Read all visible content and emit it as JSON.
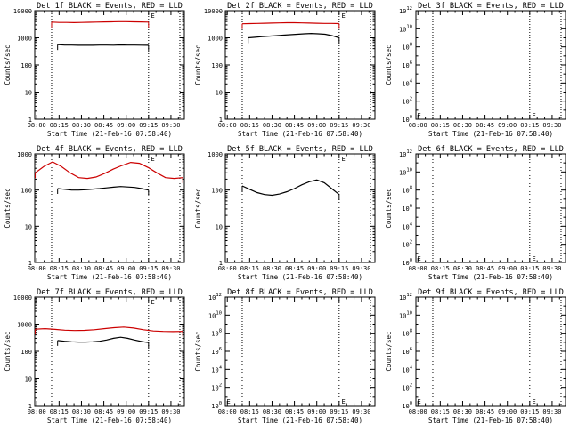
{
  "figure": {
    "background": "#ffffff",
    "foreground": "#000000",
    "series_colors": {
      "BLACK": "#000000",
      "RED": "#cc0000"
    }
  },
  "chart_data": [
    {
      "type": "line",
      "title": "Det 1f BLACK = Events, RED = LLD",
      "xlabel": "Start Time (21-Feb-16 07:58:40)",
      "ylabel": "Counts/sec",
      "y_scale": "log",
      "ylim": [
        1,
        10000
      ],
      "y_ticks": [
        "1",
        "10",
        "100",
        "1000",
        "10000"
      ],
      "x_ticks": [
        "08:00",
        "08:15",
        "08:30",
        "08:45",
        "09:00",
        "09:15",
        "09:30"
      ],
      "xlim": [
        "07:58:40",
        "09:39:00"
      ],
      "vlines": [
        "08:10",
        "09:15",
        "09:36"
      ],
      "marker": {
        "label": "E",
        "x": "09:16",
        "y": 10000
      },
      "series": [
        {
          "color": "#cc0000",
          "x_start": "08:10",
          "x_end": "09:15",
          "values": [
            3800,
            3700,
            3700,
            3650,
            3700,
            3750,
            3800,
            3850,
            3900,
            3950,
            3950,
            3900,
            3850,
            3800
          ]
        },
        {
          "color": "#000000",
          "x_start": "08:14",
          "x_end": "09:15",
          "values": [
            560,
            540,
            540,
            530,
            535,
            530,
            540,
            540,
            535,
            545,
            540,
            540,
            535,
            530
          ]
        }
      ]
    },
    {
      "type": "line",
      "title": "Det 2f BLACK = Events, RED = LLD",
      "xlabel": "Start Time (21-Feb-16 07:58:40)",
      "ylabel": "Counts/sec",
      "y_scale": "log",
      "ylim": [
        1,
        10000
      ],
      "y_ticks": [
        "1",
        "10",
        "100",
        "1000",
        "10000"
      ],
      "x_ticks": [
        "08:00",
        "08:15",
        "08:30",
        "08:45",
        "09:00",
        "09:15",
        "09:30"
      ],
      "xlim": [
        "07:58:40",
        "09:39:00"
      ],
      "vlines": [
        "08:10",
        "09:15",
        "09:36"
      ],
      "marker": {
        "label": "E",
        "x": "09:16",
        "y": 10000
      },
      "series": [
        {
          "color": "#cc0000",
          "x_start": "08:10",
          "x_end": "09:15",
          "values": [
            3300,
            3350,
            3400,
            3450,
            3500,
            3550,
            3600,
            3600,
            3550,
            3500,
            3450,
            3400,
            3400,
            3350
          ]
        },
        {
          "color": "#000000",
          "x_start": "08:14",
          "x_end": "09:15",
          "values": [
            1000,
            1050,
            1100,
            1150,
            1200,
            1250,
            1300,
            1350,
            1400,
            1450,
            1400,
            1350,
            1200,
            1000
          ]
        }
      ]
    },
    {
      "type": "line",
      "title": "Det 3f BLACK = Events, RED = LLD",
      "xlabel": "Start Time (21-Feb-16 07:58:40)",
      "ylabel": "Counts/sec",
      "y_scale": "log",
      "ylim": [
        1,
        1000000000000
      ],
      "y_ticks": [
        "10^0",
        "10^2",
        "10^4",
        "10^6",
        "10^8",
        "10^10",
        "10^12"
      ],
      "y_tick_exponents": [
        0,
        2,
        4,
        6,
        8,
        10,
        12
      ],
      "x_ticks": [
        "08:00",
        "08:15",
        "08:30",
        "08:45",
        "09:00",
        "09:15",
        "09:30"
      ],
      "xlim": [
        "07:58:40",
        "09:39:00"
      ],
      "vlines": [
        "08:10",
        "09:15",
        "09:36"
      ],
      "markers": [
        {
          "label": "E",
          "x": "07:59",
          "y": 1
        },
        {
          "label": "E",
          "x": "09:16",
          "y": 1
        }
      ],
      "series": []
    },
    {
      "type": "line",
      "title": "Det 4f BLACK = Events, RED = LLD",
      "xlabel": "Start Time (21-Feb-16 07:58:40)",
      "ylabel": "Counts/sec",
      "y_scale": "log",
      "ylim": [
        1,
        1000
      ],
      "y_ticks": [
        "1",
        "10",
        "100",
        "1000"
      ],
      "x_ticks": [
        "08:00",
        "08:15",
        "08:30",
        "08:45",
        "09:00",
        "09:15",
        "09:30"
      ],
      "xlim": [
        "07:58:40",
        "09:39:00"
      ],
      "vlines": [
        "08:10",
        "09:15",
        "09:36"
      ],
      "marker": {
        "label": "E",
        "x": "09:16",
        "y": 1000
      },
      "series": [
        {
          "color": "#cc0000",
          "x_start": "07:59",
          "x_end": "09:38",
          "values": [
            300,
            450,
            600,
            450,
            300,
            220,
            210,
            230,
            290,
            380,
            480,
            580,
            550,
            420,
            300,
            220,
            210,
            220
          ]
        },
        {
          "color": "#000000",
          "x_start": "08:14",
          "x_end": "09:15",
          "values": [
            110,
            105,
            100,
            100,
            102,
            106,
            110,
            115,
            120,
            125,
            122,
            118,
            110,
            100
          ]
        }
      ]
    },
    {
      "type": "line",
      "title": "Det 5f BLACK = Events, RED = LLD",
      "xlabel": "Start Time (21-Feb-16 07:58:40)",
      "ylabel": "Counts/sec",
      "y_scale": "log",
      "ylim": [
        1,
        1000
      ],
      "y_ticks": [
        "1",
        "10",
        "100",
        "1000"
      ],
      "x_ticks": [
        "08:00",
        "08:15",
        "08:30",
        "08:45",
        "09:00",
        "09:15",
        "09:30"
      ],
      "xlim": [
        "07:58:40",
        "09:39:00"
      ],
      "vlines": [
        "08:10",
        "09:15",
        "09:36"
      ],
      "marker": {
        "label": "E",
        "x": "09:16",
        "y": 1000
      },
      "series": [
        {
          "color": "#000000",
          "x_start": "08:10",
          "x_end": "09:15",
          "values": [
            130,
            105,
            85,
            75,
            72,
            78,
            90,
            110,
            140,
            170,
            190,
            160,
            110,
            75
          ]
        }
      ]
    },
    {
      "type": "line",
      "title": "Det 6f BLACK = Events, RED = LLD",
      "xlabel": "Start Time (21-Feb-16 07:58:40)",
      "ylabel": "Counts/sec",
      "y_scale": "log",
      "ylim": [
        1,
        1000000000000
      ],
      "y_ticks": [
        "10^0",
        "10^2",
        "10^4",
        "10^6",
        "10^8",
        "10^10",
        "10^12"
      ],
      "y_tick_exponents": [
        0,
        2,
        4,
        6,
        8,
        10,
        12
      ],
      "x_ticks": [
        "08:00",
        "08:15",
        "08:30",
        "08:45",
        "09:00",
        "09:15",
        "09:30"
      ],
      "xlim": [
        "07:58:40",
        "09:39:00"
      ],
      "vlines": [
        "08:10",
        "09:15",
        "09:36"
      ],
      "markers": [
        {
          "label": "E",
          "x": "07:59",
          "y": 1
        },
        {
          "label": "E",
          "x": "09:16",
          "y": 1
        }
      ],
      "series": []
    },
    {
      "type": "line",
      "title": "Det 7f BLACK = Events, RED = LLD",
      "xlabel": "Start Time (21-Feb-16 07:58:40)",
      "ylabel": "Counts/sec",
      "y_scale": "log",
      "ylim": [
        1,
        10000
      ],
      "y_ticks": [
        "1",
        "10",
        "100",
        "1000",
        "10000"
      ],
      "x_ticks": [
        "08:00",
        "08:15",
        "08:30",
        "08:45",
        "09:00",
        "09:15",
        "09:30"
      ],
      "xlim": [
        "07:58:40",
        "09:39:00"
      ],
      "vlines": [
        "08:10",
        "09:15",
        "09:36"
      ],
      "marker": {
        "label": "E",
        "x": "09:16",
        "y": 10000
      },
      "series": [
        {
          "color": "#cc0000",
          "x_start": "07:59",
          "x_end": "09:38",
          "values": [
            650,
            680,
            640,
            600,
            580,
            590,
            620,
            680,
            740,
            780,
            720,
            620,
            560,
            540,
            530,
            540
          ]
        },
        {
          "color": "#000000",
          "x_start": "08:14",
          "x_end": "09:15",
          "values": [
            250,
            235,
            225,
            220,
            220,
            225,
            235,
            260,
            300,
            330,
            300,
            260,
            230,
            210
          ]
        }
      ]
    },
    {
      "type": "line",
      "title": "Det 8f BLACK = Events, RED = LLD",
      "xlabel": "Start Time (21-Feb-16 07:58:40)",
      "ylabel": "Counts/sec",
      "y_scale": "log",
      "ylim": [
        1,
        1000000000000
      ],
      "y_ticks": [
        "10^0",
        "10^2",
        "10^4",
        "10^6",
        "10^8",
        "10^10",
        "10^12"
      ],
      "y_tick_exponents": [
        0,
        2,
        4,
        6,
        8,
        10,
        12
      ],
      "x_ticks": [
        "08:00",
        "08:15",
        "08:30",
        "08:45",
        "09:00",
        "09:15",
        "09:30"
      ],
      "xlim": [
        "07:58:40",
        "09:39:00"
      ],
      "vlines": [
        "08:10",
        "09:15",
        "09:36"
      ],
      "markers": [
        {
          "label": "E",
          "x": "07:59",
          "y": 1
        },
        {
          "label": "E",
          "x": "09:16",
          "y": 1
        }
      ],
      "series": []
    },
    {
      "type": "line",
      "title": "Det 9f BLACK = Events, RED = LLD",
      "xlabel": "Start Time (21-Feb-16 07:58:40)",
      "ylabel": "Counts/sec",
      "y_scale": "log",
      "ylim": [
        1,
        1000000000000
      ],
      "y_ticks": [
        "10^0",
        "10^2",
        "10^4",
        "10^6",
        "10^8",
        "10^10",
        "10^12"
      ],
      "y_tick_exponents": [
        0,
        2,
        4,
        6,
        8,
        10,
        12
      ],
      "x_ticks": [
        "08:00",
        "08:15",
        "08:30",
        "08:45",
        "09:00",
        "09:15",
        "09:30"
      ],
      "xlim": [
        "07:58:40",
        "09:39:00"
      ],
      "vlines": [
        "08:10",
        "09:15",
        "09:36"
      ],
      "markers": [
        {
          "label": "E",
          "x": "07:59",
          "y": 1
        },
        {
          "label": "E",
          "x": "09:16",
          "y": 1
        }
      ],
      "series": []
    }
  ]
}
